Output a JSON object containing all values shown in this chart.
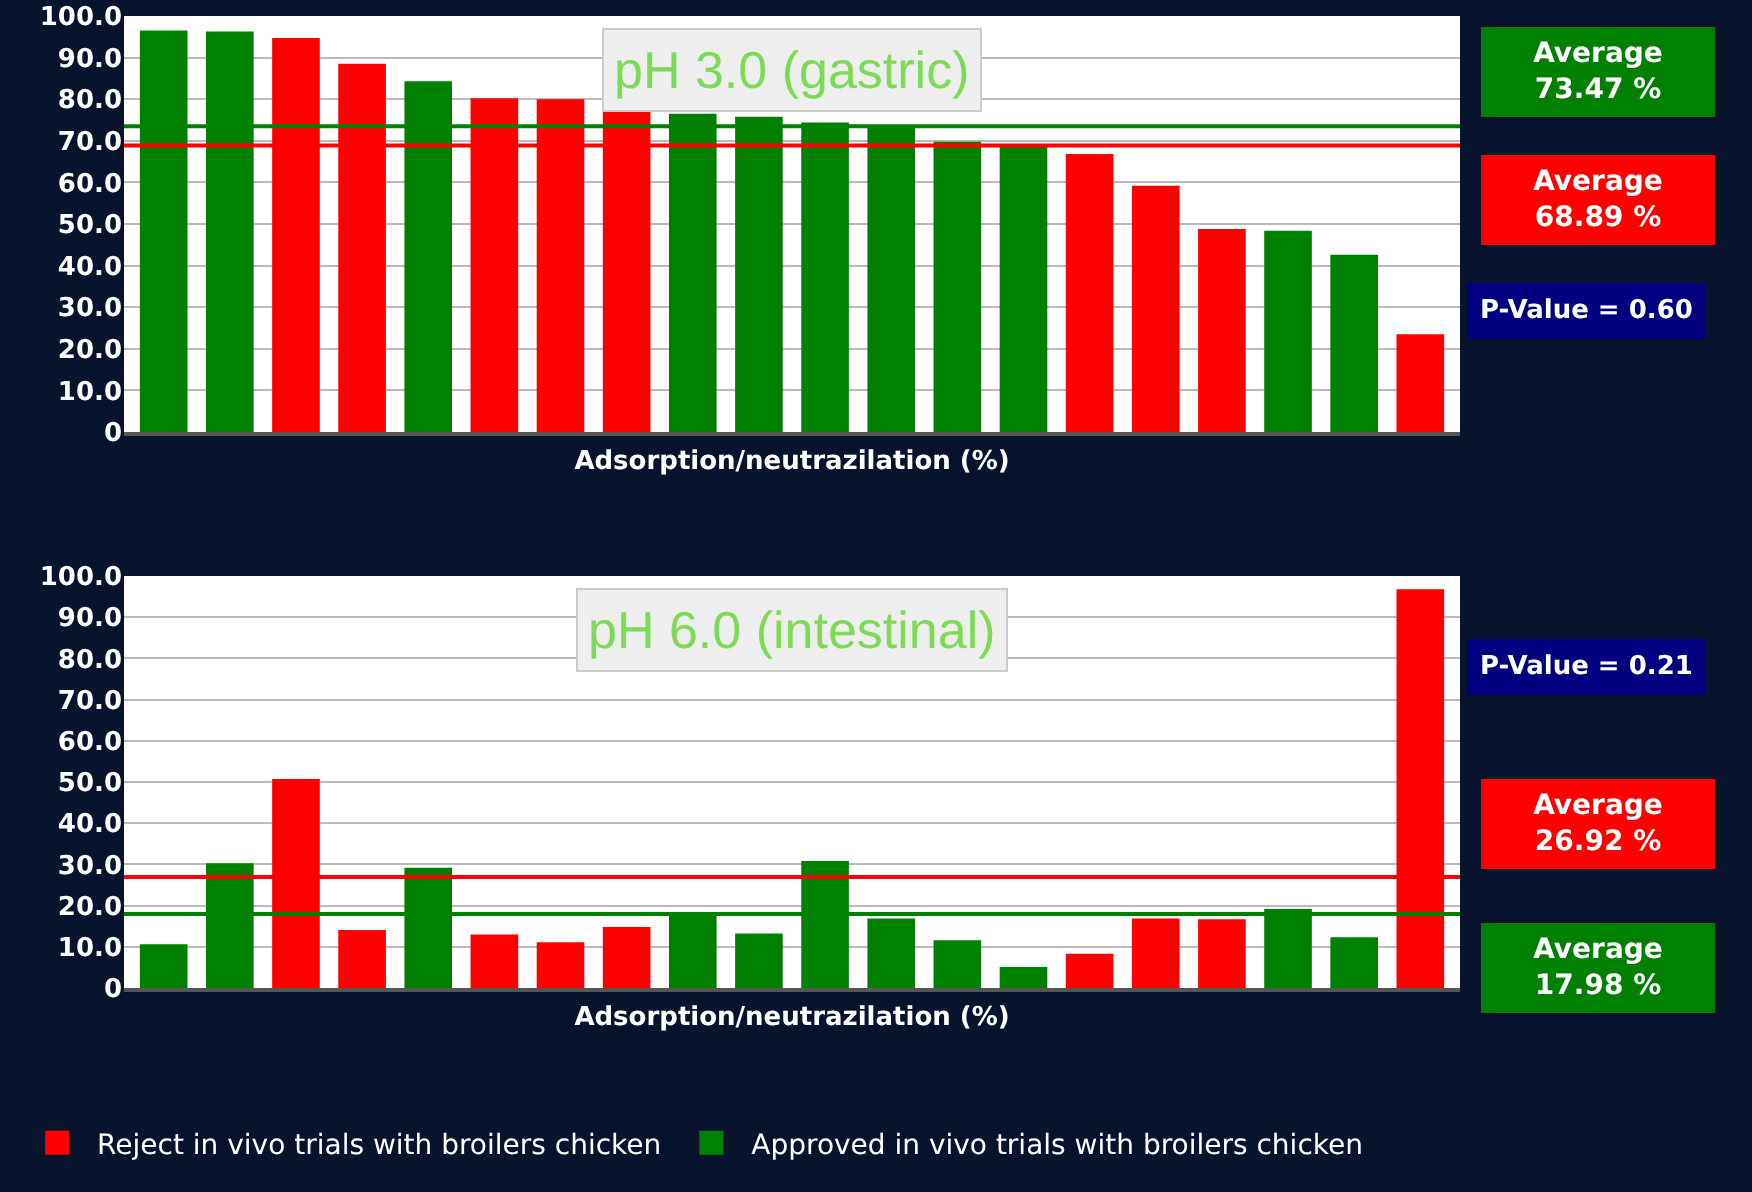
{
  "chart_data": [
    {
      "type": "bar",
      "title": "pH 3.0 (gastric)",
      "xlabel": "Adsorption/neutrazilation (%)",
      "categories": [
        null,
        null,
        null,
        null,
        null,
        null,
        null,
        null,
        null,
        null,
        null,
        null,
        null,
        null,
        null,
        null,
        null,
        null,
        null,
        null
      ],
      "series": [
        {
          "color": "#ff0000",
          "values": [
            null,
            null,
            94.7,
            88.5,
            null,
            80.2,
            80.0,
            77.0,
            null,
            null,
            null,
            null,
            null,
            null,
            66.8,
            59.2,
            48.8,
            null,
            null,
            23.5
          ]
        },
        {
          "color": "#008000",
          "values": [
            96.5,
            96.3,
            null,
            null,
            84.3,
            null,
            null,
            null,
            76.5,
            75.8,
            74.4,
            73.3,
            69.8,
            68.7,
            null,
            null,
            null,
            48.4,
            42.6,
            null
          ]
        }
      ],
      "ylim": [
        0,
        100
      ],
      "yticks": [
        0,
        {
          "value": 10,
          "label": "10.0"
        },
        {
          "value": 20,
          "label": "20.0"
        },
        {
          "value": 30,
          "label": "30.0"
        },
        {
          "value": 40,
          "label": "40.0"
        },
        {
          "value": 50,
          "label": "50.0"
        },
        {
          "value": 60,
          "label": "60.0"
        },
        {
          "value": 70,
          "label": "70.0"
        },
        {
          "value": 80,
          "label": "80.0"
        },
        {
          "value": 90,
          "label": "90.0"
        },
        {
          "value": 100,
          "label": "100.0"
        }
      ],
      "grid": "y",
      "legend": false,
      "ref_lines": [
        {
          "axis": "y",
          "value": 73.47,
          "label": "Average\n73.47 %",
          "color": "#008000"
        },
        {
          "axis": "y",
          "value": 68.89,
          "label": "Average\n68.89 %",
          "color": "#ff0000"
        }
      ],
      "annotations": [
        "P-Value = 0.60"
      ]
    },
    {
      "type": "bar",
      "title": "pH 6.0 (intestinal)",
      "xlabel": "Adsorption/neutrazilation (%)",
      "categories": [
        null,
        null,
        null,
        null,
        null,
        null,
        null,
        null,
        null,
        null,
        null,
        null,
        null,
        null,
        null,
        null,
        null,
        null,
        null,
        null
      ],
      "series": [
        {
          "name": "Reject in vivo trials with broilers chicken",
          "color": "#ff0000",
          "values": [
            null,
            null,
            50.7,
            14.1,
            null,
            13.0,
            11.1,
            14.8,
            null,
            null,
            null,
            null,
            null,
            null,
            8.3,
            16.9,
            16.7,
            null,
            null,
            96.8
          ]
        },
        {
          "name": "Approved in vivo trials with broilers chicken",
          "color": "#008000",
          "values": [
            10.6,
            30.3,
            null,
            null,
            29.2,
            null,
            null,
            null,
            18.3,
            13.2,
            30.8,
            16.9,
            11.6,
            5.1,
            null,
            null,
            null,
            19.2,
            12.3,
            null
          ]
        }
      ],
      "ylim": [
        0,
        100
      ],
      "yticks": [
        0,
        {
          "value": 10,
          "label": "10.0"
        },
        {
          "value": 20,
          "label": "20.0"
        },
        {
          "value": 30,
          "label": "30.0"
        },
        {
          "value": 40,
          "label": "40.0"
        },
        {
          "value": 50,
          "label": "50.0"
        },
        {
          "value": 60,
          "label": "60.0"
        },
        {
          "value": 70,
          "label": "70.0"
        },
        {
          "value": 80,
          "label": "80.0"
        },
        {
          "value": 90,
          "label": "90.0"
        },
        {
          "value": 100,
          "label": "100.0"
        }
      ],
      "grid": "y",
      "legend": "bottom",
      "ref_lines": [
        {
          "axis": "y",
          "value": 26.92,
          "label": "Average\n26.92 %",
          "color": "#ff0000"
        },
        {
          "axis": "y",
          "value": 17.98,
          "label": "Average\n17.98 %",
          "color": "#008000"
        }
      ],
      "annotations": [
        "P-Value = 0.21"
      ]
    }
  ]
}
